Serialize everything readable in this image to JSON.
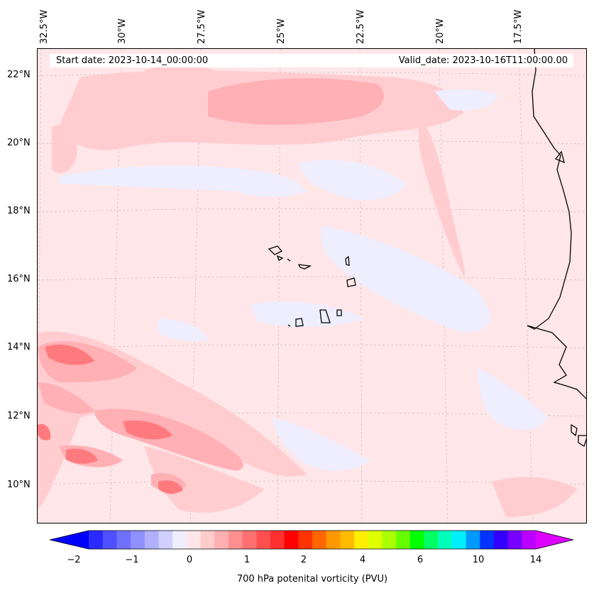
{
  "header": {
    "start_date": "Start date: 2023-10-14_00:00:00",
    "valid_date": "Valid_date: 2023-10-16T11:00:00.00"
  },
  "axes": {
    "longitude_labels": [
      "32.5°W",
      "30°W",
      "27.5°W",
      "25°W",
      "22.5°W",
      "20°W",
      "17.5°W"
    ],
    "latitude_labels": [
      "22°N",
      "20°N",
      "18°N",
      "16°N",
      "14°N",
      "12°N",
      "10°N"
    ]
  },
  "colorbar": {
    "label": "700 hPa potenital vorticity (PVU)",
    "tick_labels": [
      "−2",
      "−1",
      "0",
      "1",
      "2",
      "4",
      "6",
      "10",
      "14"
    ],
    "colors": [
      "#0000ff",
      "#2a2aff",
      "#5050ff",
      "#7070ff",
      "#9090ff",
      "#b0b0ff",
      "#d0d0ff",
      "#eeeeff",
      "#ffe6e8",
      "#ffcccc",
      "#ffb0b0",
      "#ff9090",
      "#ff7070",
      "#ff5050",
      "#ff3030",
      "#ff0000",
      "#ff3300",
      "#ff6600",
      "#ff9900",
      "#ffbb00",
      "#ffee00",
      "#ddff00",
      "#aaff00",
      "#66ff00",
      "#00ff00",
      "#00ff66",
      "#00ffbb",
      "#00eeff",
      "#0099ff",
      "#0033ff",
      "#3300ff",
      "#7700ff",
      "#bb00ff",
      "#dd00ff"
    ]
  }
}
